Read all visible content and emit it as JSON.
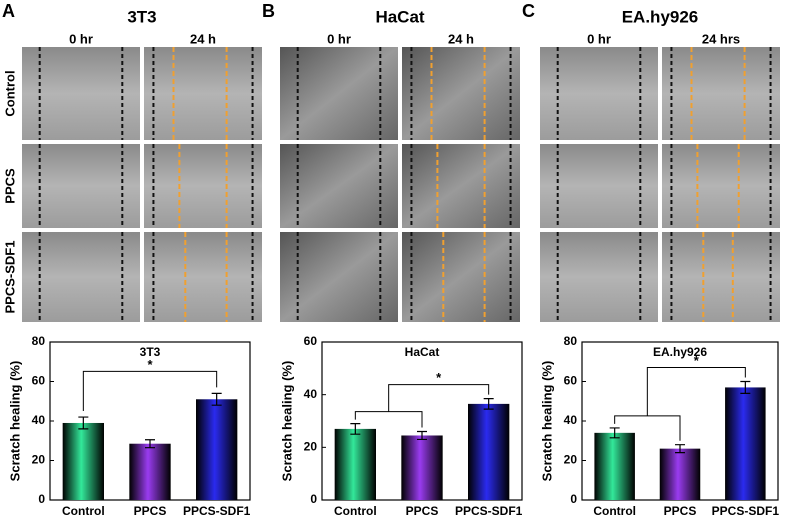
{
  "panels": [
    {
      "letter": "A",
      "title": "3T3",
      "columns": [
        "0 hr",
        "24 h"
      ]
    },
    {
      "letter": "B",
      "title": "HaCat",
      "columns": [
        "0 hr",
        "24 h"
      ]
    },
    {
      "letter": "C",
      "title": "EA.hy926",
      "columns": [
        "0 hr",
        "24 hrs"
      ]
    }
  ],
  "row_labels": [
    "Control",
    "PPCS",
    "PPCS-SDF1"
  ],
  "chart_data": [
    {
      "type": "bar",
      "title": "3T3",
      "ylabel": "Scratch healing (%)",
      "categories": [
        "Control",
        "PPCS",
        "PPCS-SDF1"
      ],
      "values": [
        39,
        28.5,
        51
      ],
      "errors": [
        3,
        2,
        3
      ],
      "colors": [
        "#33e89a",
        "#9a3cf0",
        "#2b2bf0"
      ],
      "ylim": [
        0,
        80
      ],
      "yticks": [
        0,
        20,
        40,
        60,
        80
      ],
      "annotation": "*"
    },
    {
      "type": "bar",
      "title": "HaCat",
      "ylabel": "Scratch healing (%)",
      "categories": [
        "Control",
        "PPCS",
        "PPCS-SDF1"
      ],
      "values": [
        27,
        24.5,
        36.5
      ],
      "errors": [
        2,
        1.5,
        2
      ],
      "colors": [
        "#33e89a",
        "#9a3cf0",
        "#2b2bf0"
      ],
      "ylim": [
        0,
        60
      ],
      "yticks": [
        0,
        20,
        40,
        60
      ],
      "annotation": "*"
    },
    {
      "type": "bar",
      "title": "EA.hy926",
      "ylabel": "Scratch healing (%)",
      "categories": [
        "Control",
        "PPCS",
        "PPCS-SDF1"
      ],
      "values": [
        34,
        26,
        57
      ],
      "errors": [
        2.5,
        2,
        3
      ],
      "colors": [
        "#33e89a",
        "#9a3cf0",
        "#2b2bf0"
      ],
      "ylim": [
        0,
        80
      ],
      "yticks": [
        0,
        20,
        40,
        60,
        80
      ],
      "annotation": "*"
    }
  ]
}
